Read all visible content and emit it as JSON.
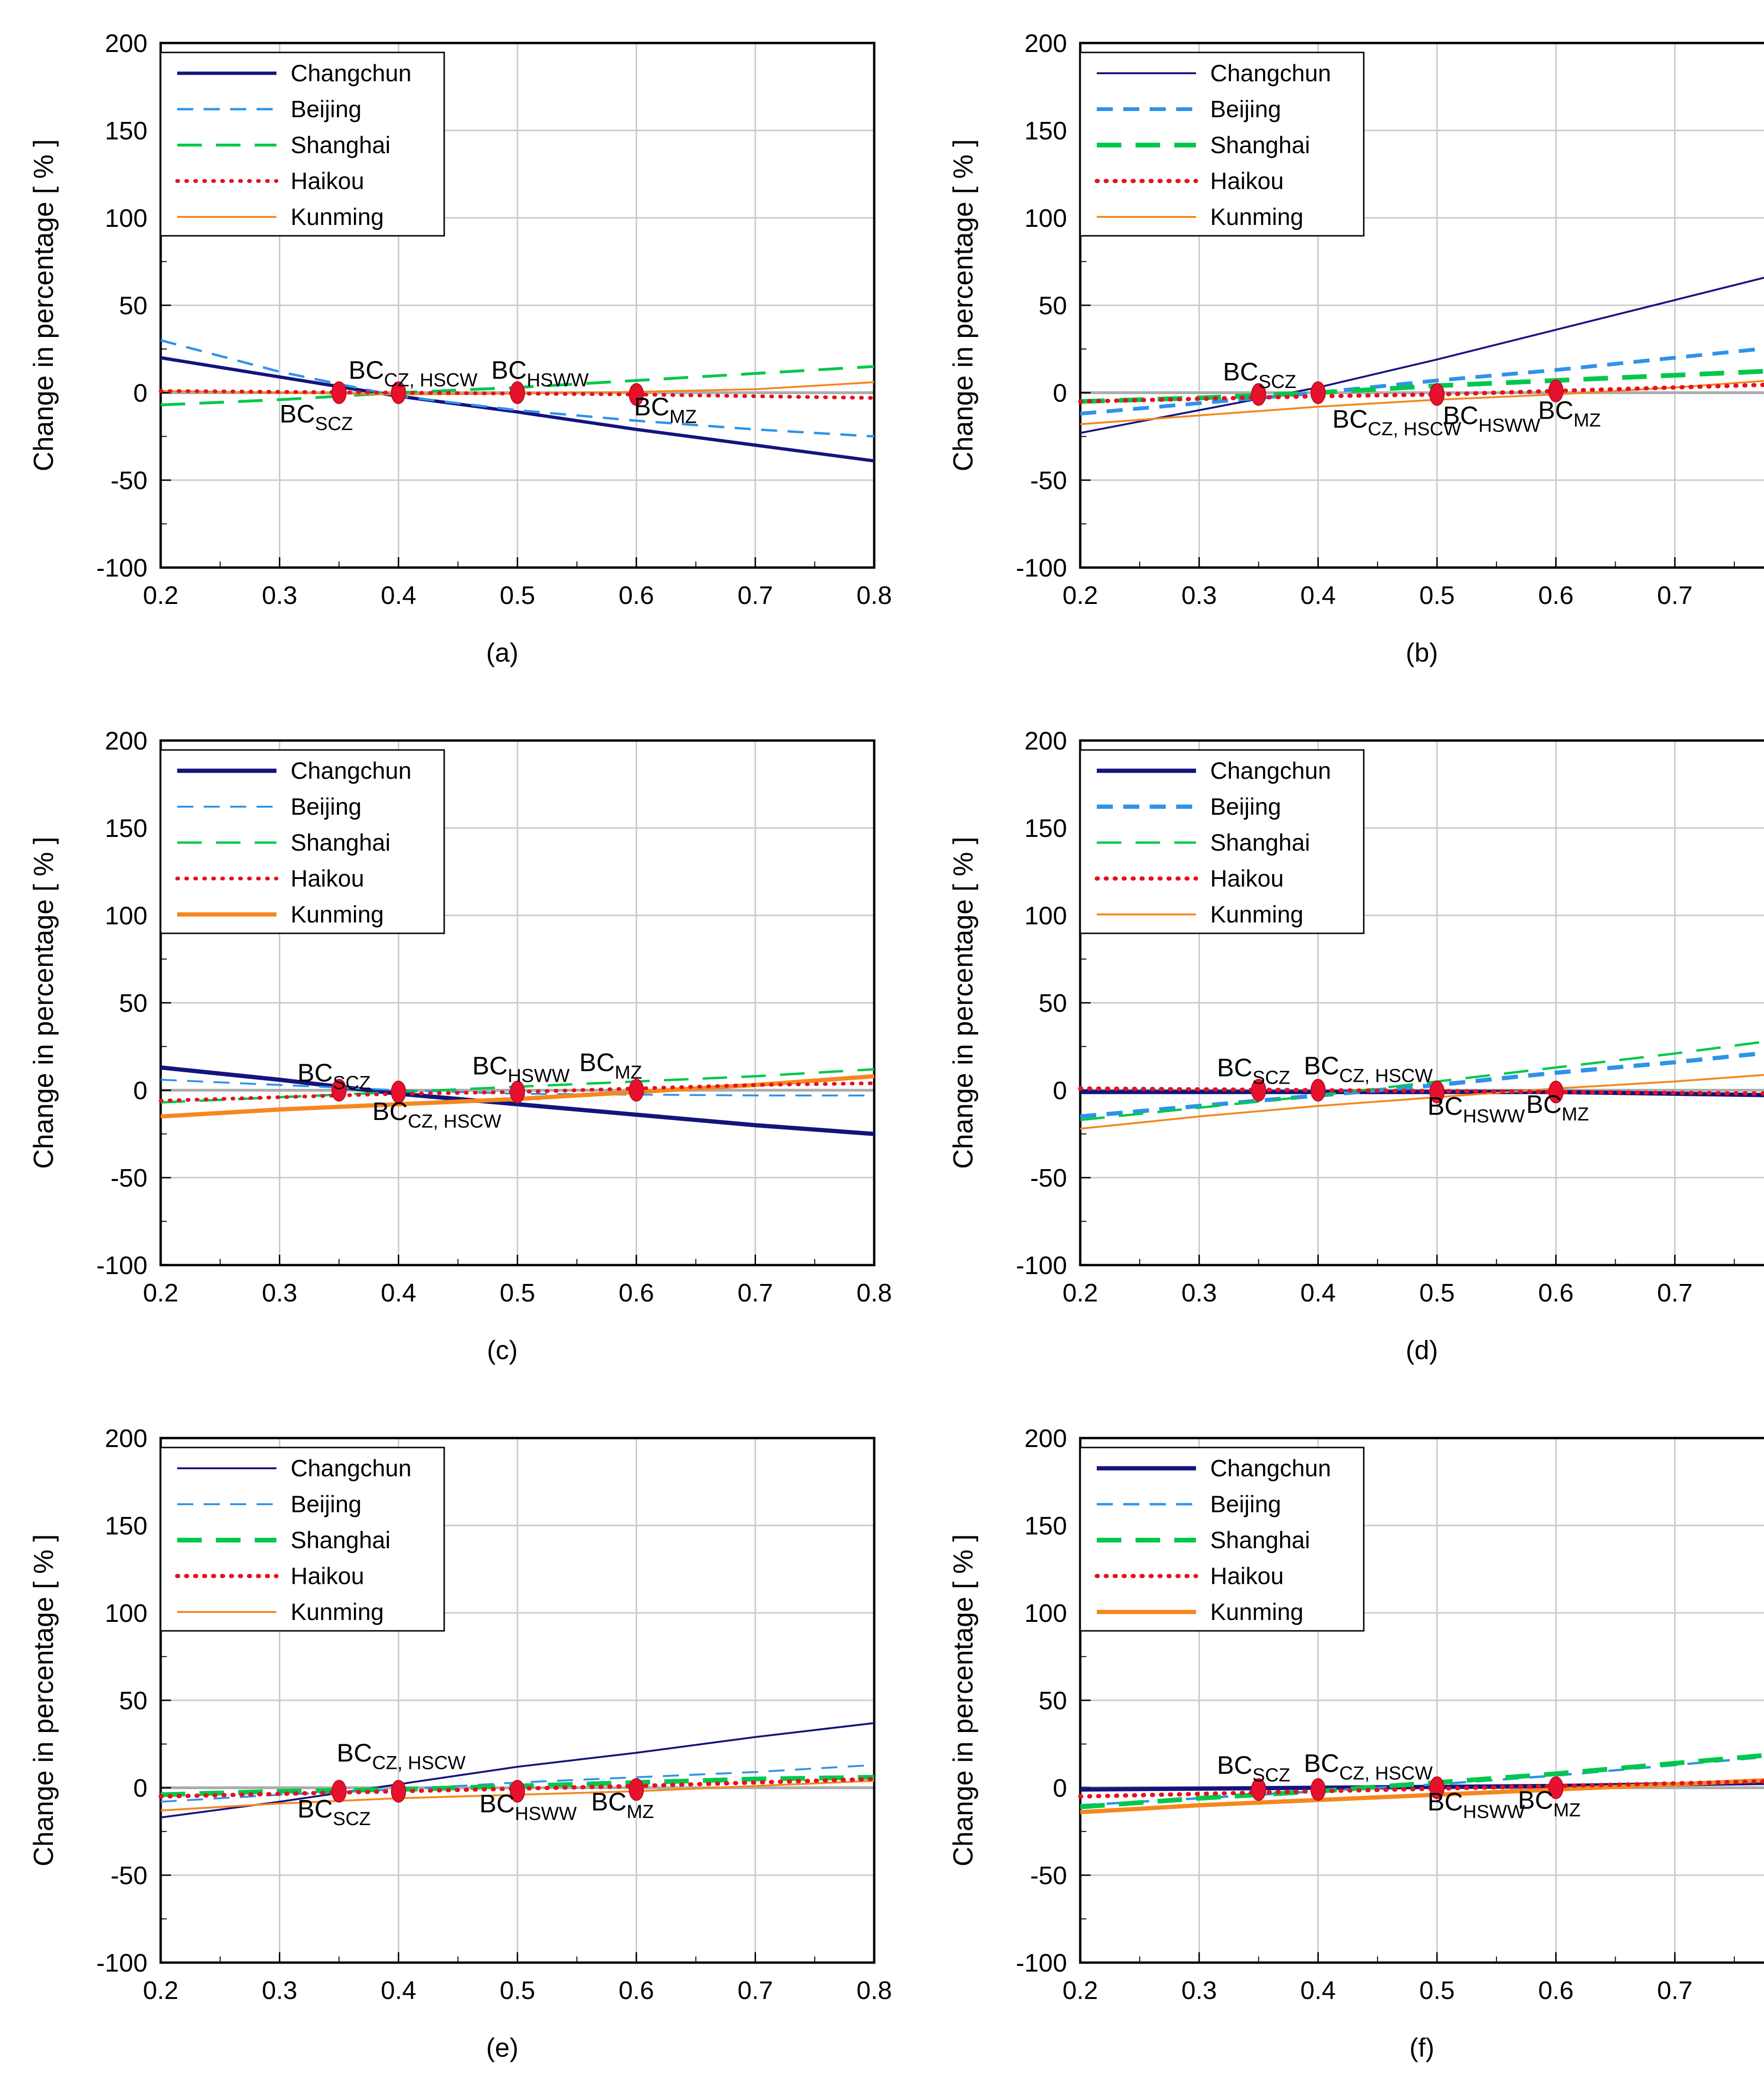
{
  "figure": {
    "ylabel": "Change in percentage   [ % ]",
    "legend_labels": [
      "Changchun",
      "Beijing",
      "Shanghai",
      "Haikou",
      "Kunming"
    ],
    "x_ticks": [
      "0.2",
      "0.3",
      "0.4",
      "0.5",
      "0.6",
      "0.7",
      "0.8"
    ],
    "y_ticks": [
      "200",
      "150",
      "100",
      "50",
      "0",
      "-50",
      "-100"
    ],
    "xlim": [
      0.2,
      0.8
    ],
    "ylim": [
      -100,
      200
    ],
    "grid": "on",
    "legend_position": "top-left",
    "colors": {
      "Changchun": "#14147E",
      "Beijing": "#2E93E8",
      "Shanghai": "#00C84B",
      "Haikou": "#E51220",
      "Kunming": "#F5871F",
      "marker": "#E8112D",
      "marker_edge": "#B50C20",
      "gridline": "#C9C9C9",
      "zeroline": "#ADADAD",
      "frame": "#000000"
    }
  },
  "chart_data": [
    {
      "id": "a",
      "caption": "(a)",
      "type": "line",
      "x": [
        0.2,
        0.3,
        0.4,
        0.5,
        0.6,
        0.7,
        0.8
      ],
      "series": [
        {
          "name": "Changchun",
          "dash": "solid",
          "lw": 7,
          "values": [
            20,
            9,
            -2,
            -11,
            -21,
            -30,
            -39
          ]
        },
        {
          "name": "Beijing",
          "dash": "dash",
          "lw": 5,
          "values": [
            30,
            12,
            -2,
            -10,
            -16,
            -21,
            -25
          ]
        },
        {
          "name": "Shanghai",
          "dash": "longdash",
          "lw": 6,
          "values": [
            -7,
            -4,
            0,
            3,
            7,
            11,
            15
          ]
        },
        {
          "name": "Haikou",
          "dash": "dot",
          "lw": 8,
          "values": [
            1,
            0.5,
            0,
            -0.5,
            -1,
            -2,
            -3
          ]
        },
        {
          "name": "Kunming",
          "dash": "solid",
          "lw": 4,
          "values": [
            1,
            0,
            -1,
            -0.5,
            0.5,
            2,
            6
          ]
        }
      ],
      "markers": [
        {
          "x": 0.35,
          "y": 0
        },
        {
          "x": 0.4,
          "y": 0
        },
        {
          "x": 0.5,
          "y": 0
        },
        {
          "x": 0.6,
          "y": -1
        }
      ],
      "annotations": [
        {
          "text": "BC",
          "sub": "CZ, HSCW",
          "x": 0.358,
          "y": 8
        },
        {
          "text": "BC",
          "sub": "HSWW",
          "x": 0.478,
          "y": 8
        },
        {
          "text": "BC",
          "sub": "SCZ",
          "x": 0.3,
          "y": -17
        },
        {
          "text": "BC",
          "sub": "MZ",
          "x": 0.598,
          "y": -13
        }
      ]
    },
    {
      "id": "b",
      "caption": "(b)",
      "type": "line",
      "x": [
        0.2,
        0.3,
        0.4,
        0.5,
        0.6,
        0.7,
        0.8
      ],
      "series": [
        {
          "name": "Changchun",
          "dash": "solid",
          "lw": 4,
          "values": [
            -23,
            -10,
            3,
            19,
            36,
            53,
            70
          ]
        },
        {
          "name": "Beijing",
          "dash": "dash",
          "lw": 8,
          "values": [
            -12,
            -6,
            0,
            7,
            13,
            20,
            27
          ]
        },
        {
          "name": "Shanghai",
          "dash": "longdash",
          "lw": 10,
          "values": [
            -5,
            -3,
            0,
            4,
            7,
            10,
            13
          ]
        },
        {
          "name": "Haikou",
          "dash": "dot",
          "lw": 9,
          "values": [
            -5,
            -3.5,
            -2,
            -1,
            1,
            3,
            5
          ]
        },
        {
          "name": "Kunming",
          "dash": "solid",
          "lw": 4,
          "values": [
            -18,
            -13,
            -8,
            -4,
            -1,
            3,
            8
          ]
        }
      ],
      "markers": [
        {
          "x": 0.35,
          "y": -1
        },
        {
          "x": 0.4,
          "y": 0
        },
        {
          "x": 0.5,
          "y": -1
        },
        {
          "x": 0.6,
          "y": 1
        }
      ],
      "annotations": [
        {
          "text": "BC",
          "sub": "SCZ",
          "x": 0.32,
          "y": 7
        },
        {
          "text": "BC",
          "sub": "CZ, HSCW",
          "x": 0.412,
          "y": -20
        },
        {
          "text": "BC",
          "sub": "HSWW",
          "x": 0.505,
          "y": -18
        },
        {
          "text": "BC",
          "sub": "MZ",
          "x": 0.585,
          "y": -15
        }
      ]
    },
    {
      "id": "c",
      "caption": "(c)",
      "type": "line",
      "x": [
        0.2,
        0.3,
        0.4,
        0.5,
        0.6,
        0.7,
        0.8
      ],
      "series": [
        {
          "name": "Changchun",
          "dash": "solid",
          "lw": 9,
          "values": [
            13,
            6,
            -2,
            -8,
            -14,
            -20,
            -25
          ]
        },
        {
          "name": "Beijing",
          "dash": "dash",
          "lw": 4,
          "values": [
            6,
            3,
            0,
            -2,
            -2.5,
            -3,
            -3
          ]
        },
        {
          "name": "Shanghai",
          "dash": "longdash",
          "lw": 5,
          "values": [
            -7,
            -4,
            -1,
            2,
            5,
            8,
            12
          ]
        },
        {
          "name": "Haikou",
          "dash": "dot",
          "lw": 8,
          "values": [
            -6,
            -4,
            -2,
            -1,
            1,
            3,
            4
          ]
        },
        {
          "name": "Kunming",
          "dash": "solid",
          "lw": 9,
          "values": [
            -15,
            -11,
            -8,
            -5,
            -1,
            3,
            8
          ]
        }
      ],
      "markers": [
        {
          "x": 0.35,
          "y": 0
        },
        {
          "x": 0.4,
          "y": -1
        },
        {
          "x": 0.5,
          "y": -1
        },
        {
          "x": 0.6,
          "y": 0
        }
      ],
      "annotations": [
        {
          "text": "BC",
          "sub": "SCZ",
          "x": 0.315,
          "y": 5
        },
        {
          "text": "BC",
          "sub": "HSWW",
          "x": 0.462,
          "y": 9
        },
        {
          "text": "BC",
          "sub": "MZ",
          "x": 0.552,
          "y": 11
        },
        {
          "text": "BC",
          "sub": "CZ, HSCW",
          "x": 0.378,
          "y": -17
        }
      ]
    },
    {
      "id": "d",
      "caption": "(d)",
      "type": "line",
      "x": [
        0.2,
        0.3,
        0.4,
        0.5,
        0.6,
        0.7,
        0.8
      ],
      "series": [
        {
          "name": "Changchun",
          "dash": "solid",
          "lw": 9,
          "values": [
            -1,
            -1,
            -1,
            -1,
            -1,
            -2,
            -3
          ]
        },
        {
          "name": "Beijing",
          "dash": "dash",
          "lw": 9,
          "values": [
            -15,
            -9,
            -3,
            3,
            10,
            16,
            23
          ]
        },
        {
          "name": "Shanghai",
          "dash": "longdash",
          "lw": 5,
          "values": [
            -17,
            -10,
            -3,
            5,
            13,
            21,
            30
          ]
        },
        {
          "name": "Haikou",
          "dash": "dot",
          "lw": 9,
          "values": [
            1,
            0.5,
            0,
            -0.5,
            -1,
            -1.5,
            -2
          ]
        },
        {
          "name": "Kunming",
          "dash": "solid",
          "lw": 4,
          "values": [
            -22,
            -15,
            -9,
            -4,
            1,
            5,
            10
          ]
        }
      ],
      "markers": [
        {
          "x": 0.35,
          "y": 0
        },
        {
          "x": 0.4,
          "y": 0
        },
        {
          "x": 0.5,
          "y": -1
        },
        {
          "x": 0.6,
          "y": -1
        }
      ],
      "annotations": [
        {
          "text": "BC",
          "sub": "SCZ",
          "x": 0.315,
          "y": 8
        },
        {
          "text": "BC",
          "sub": "CZ, HSCW",
          "x": 0.388,
          "y": 9
        },
        {
          "text": "BC",
          "sub": "HSWW",
          "x": 0.492,
          "y": -14
        },
        {
          "text": "BC",
          "sub": "MZ",
          "x": 0.575,
          "y": -13
        }
      ]
    },
    {
      "id": "e",
      "caption": "(e)",
      "type": "line",
      "x": [
        0.2,
        0.3,
        0.4,
        0.5,
        0.6,
        0.7,
        0.8
      ],
      "series": [
        {
          "name": "Changchun",
          "dash": "solid",
          "lw": 4,
          "values": [
            -17,
            -8,
            2,
            12,
            20,
            29,
            37
          ]
        },
        {
          "name": "Beijing",
          "dash": "dash",
          "lw": 4,
          "values": [
            -8,
            -4,
            -1,
            3,
            6,
            9,
            13
          ]
        },
        {
          "name": "Shanghai",
          "dash": "longdash",
          "lw": 10,
          "values": [
            -4,
            -2,
            -1,
            1,
            3,
            5,
            6
          ]
        },
        {
          "name": "Haikou",
          "dash": "dot",
          "lw": 9,
          "values": [
            -5,
            -3.5,
            -2,
            -0.5,
            1,
            3,
            5
          ]
        },
        {
          "name": "Kunming",
          "dash": "solid",
          "lw": 4,
          "values": [
            -13,
            -9,
            -6,
            -4,
            -2,
            1,
            4
          ]
        }
      ],
      "markers": [
        {
          "x": 0.35,
          "y": -2
        },
        {
          "x": 0.4,
          "y": -2
        },
        {
          "x": 0.5,
          "y": -2
        },
        {
          "x": 0.6,
          "y": -1
        }
      ],
      "annotations": [
        {
          "text": "BC",
          "sub": "CZ, HSCW",
          "x": 0.348,
          "y": 15
        },
        {
          "text": "BC",
          "sub": "SCZ",
          "x": 0.315,
          "y": -17
        },
        {
          "text": "BC",
          "sub": "HSWW",
          "x": 0.468,
          "y": -14
        },
        {
          "text": "BC",
          "sub": "MZ",
          "x": 0.562,
          "y": -13
        }
      ]
    },
    {
      "id": "f",
      "caption": "(f)",
      "type": "line",
      "x": [
        0.2,
        0.3,
        0.4,
        0.5,
        0.6,
        0.7,
        0.8
      ],
      "series": [
        {
          "name": "Changchun",
          "dash": "solid",
          "lw": 9,
          "values": [
            -1,
            -0.5,
            0,
            0.5,
            1,
            2,
            3
          ]
        },
        {
          "name": "Beijing",
          "dash": "dash",
          "lw": 5,
          "values": [
            -10,
            -6,
            -2,
            2,
            7,
            13,
            19
          ]
        },
        {
          "name": "Shanghai",
          "dash": "longdash",
          "lw": 10,
          "values": [
            -11,
            -6,
            -2,
            3,
            8,
            14,
            20
          ]
        },
        {
          "name": "Haikou",
          "dash": "dot",
          "lw": 9,
          "values": [
            -5,
            -3.5,
            -2,
            -0.5,
            1,
            2.5,
            4
          ]
        },
        {
          "name": "Kunming",
          "dash": "solid",
          "lw": 9,
          "values": [
            -14,
            -10,
            -7,
            -4,
            -1,
            2,
            5
          ]
        }
      ],
      "markers": [
        {
          "x": 0.35,
          "y": -1
        },
        {
          "x": 0.4,
          "y": -1
        },
        {
          "x": 0.5,
          "y": 0
        },
        {
          "x": 0.6,
          "y": 0
        }
      ],
      "annotations": [
        {
          "text": "BC",
          "sub": "SCZ",
          "x": 0.315,
          "y": 8
        },
        {
          "text": "BC",
          "sub": "CZ, HSCW",
          "x": 0.388,
          "y": 9
        },
        {
          "text": "BC",
          "sub": "HSWW",
          "x": 0.492,
          "y": -13
        },
        {
          "text": "BC",
          "sub": "MZ",
          "x": 0.568,
          "y": -12
        }
      ]
    }
  ]
}
